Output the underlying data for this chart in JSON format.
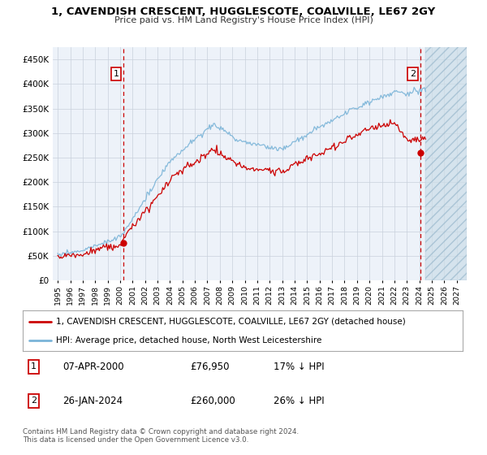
{
  "title": "1, CAVENDISH CRESCENT, HUGGLESCOTE, COALVILLE, LE67 2GY",
  "subtitle": "Price paid vs. HM Land Registry's House Price Index (HPI)",
  "legend_line1": "1, CAVENDISH CRESCENT, HUGGLESCOTE, COALVILLE, LE67 2GY (detached house)",
  "legend_line2": "HPI: Average price, detached house, North West Leicestershire",
  "annotation1_label": "1",
  "annotation1_date": "07-APR-2000",
  "annotation1_price": "£76,950",
  "annotation1_hpi": "17% ↓ HPI",
  "annotation2_label": "2",
  "annotation2_date": "26-JAN-2024",
  "annotation2_price": "£260,000",
  "annotation2_hpi": "26% ↓ HPI",
  "footer": "Contains HM Land Registry data © Crown copyright and database right 2024.\nThis data is licensed under the Open Government Licence v3.0.",
  "ylim": [
    0,
    475000
  ],
  "yticks": [
    0,
    50000,
    100000,
    150000,
    200000,
    250000,
    300000,
    350000,
    400000,
    450000
  ],
  "hpi_color": "#7ab4d8",
  "price_color": "#cc0000",
  "dashed_line_color": "#cc0000",
  "plot_bg_color": "#edf2f9",
  "grid_color": "#c8d0dc",
  "year_start": 1995,
  "year_end": 2027,
  "sale1_year": 2000.27,
  "sale1_price": 76950,
  "sale2_year": 2024.07,
  "sale2_price": 260000
}
